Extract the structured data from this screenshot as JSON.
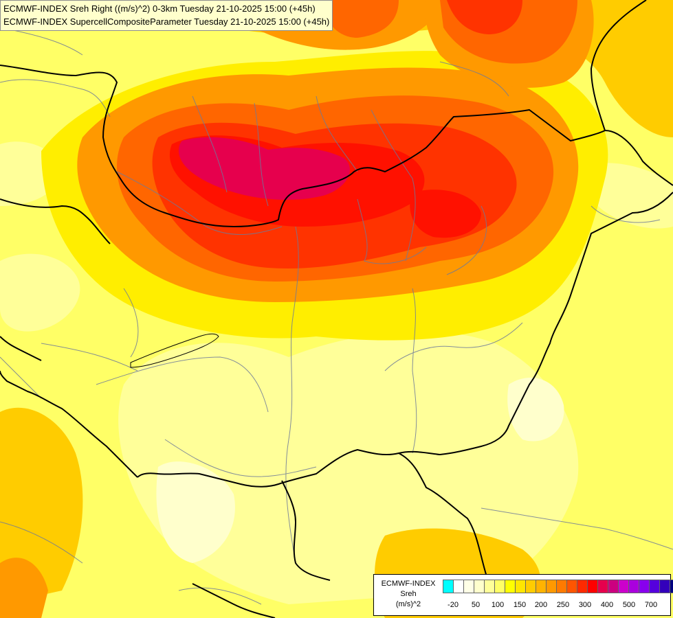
{
  "header": {
    "line1": "ECMWF-INDEX Sreh Right ((m/s)^2) 0-3km Tuesday 21-10-2025 15:00 (+45h)",
    "line2": "ECMWF-INDEX SupercellCompositeParameter Tuesday 21-10-2025 15:00 (+45h)"
  },
  "legend": {
    "source": "ECMWF-INDEX",
    "param": "Sreh",
    "unit": "(m/s)^2",
    "colors": [
      "#00ffff",
      "#ffffff",
      "#ffffe6",
      "#ffffcc",
      "#ffff99",
      "#ffff66",
      "#ffff00",
      "#ffe600",
      "#ffcc00",
      "#ffb300",
      "#ff9900",
      "#ff7a00",
      "#ff5500",
      "#ff2a00",
      "#ff0000",
      "#e6004d",
      "#cc0080",
      "#cc00cc",
      "#aa00dd",
      "#8800ee",
      "#5500dd",
      "#3300bb",
      "#000080"
    ],
    "ticks": [
      "-20",
      "50",
      "100",
      "150",
      "200",
      "250",
      "300",
      "400",
      "500",
      "700"
    ]
  },
  "map": {
    "field_colors": {
      "base": "#ffff66",
      "light": "#ffff99",
      "pale": "#ffffcc",
      "yellow": "#ffee00",
      "gold": "#ffcc00",
      "orange": "#ff9900",
      "dark_orange": "#ff6600",
      "red_orange": "#ff3300",
      "red": "#ff1100",
      "crimson": "#e6004d"
    }
  }
}
